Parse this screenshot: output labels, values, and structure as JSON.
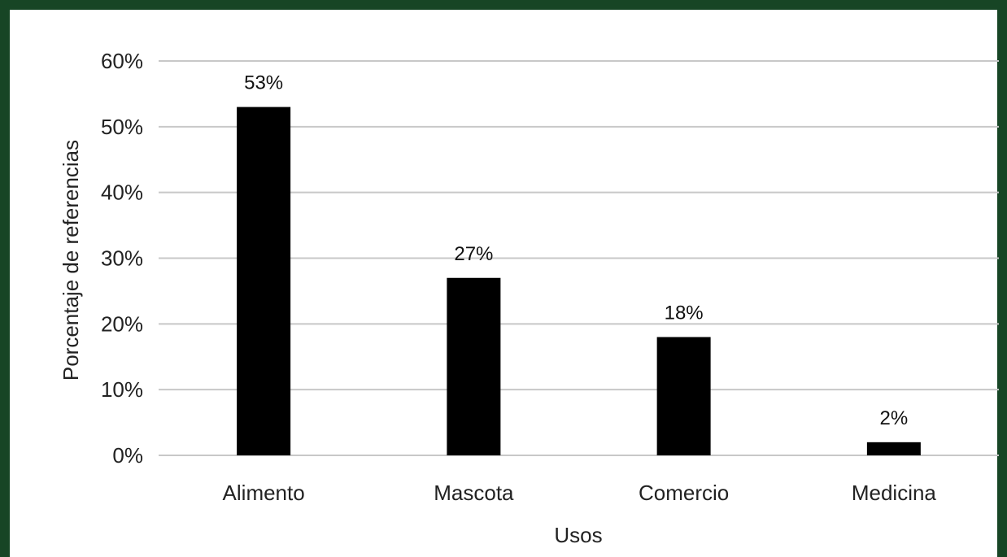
{
  "chart_data": {
    "type": "bar",
    "categories": [
      "Alimento",
      "Mascota",
      "Comercio",
      "Medicina"
    ],
    "values": [
      53,
      27,
      18,
      2
    ],
    "data_labels": [
      "53%",
      "27%",
      "18%",
      "2%"
    ],
    "xlabel": "Usos",
    "ylabel": "Porcentaje de referencias",
    "ylim": [
      0,
      60
    ],
    "yticks": [
      0,
      10,
      20,
      30,
      40,
      50,
      60
    ],
    "ytick_labels": [
      "0%",
      "10%",
      "20%",
      "30%",
      "40%",
      "50%",
      "60%"
    ],
    "grid": true,
    "legend": "none",
    "bar_color": "#000000",
    "grid_color": "#c8c8c8",
    "frame_color": "#174525"
  }
}
